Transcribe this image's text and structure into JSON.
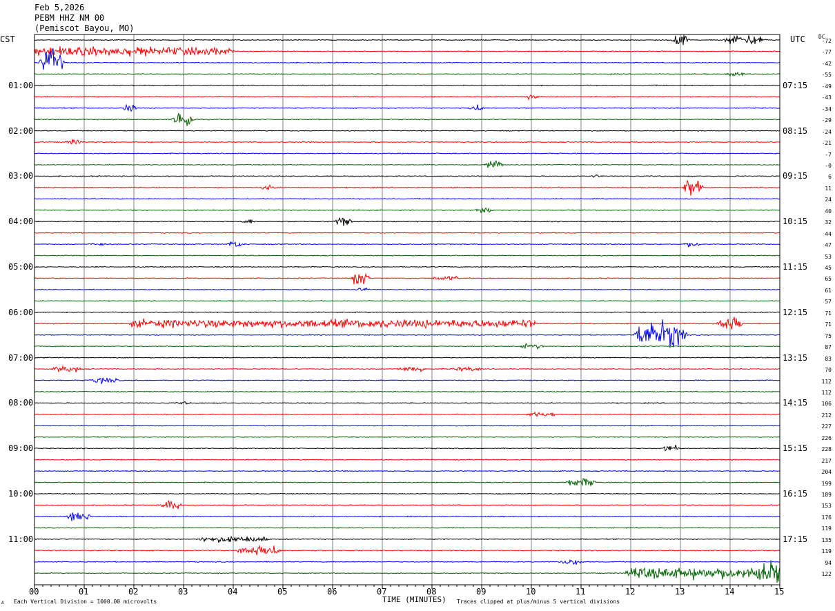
{
  "header": {
    "date": "Feb 5,2026",
    "station": "PEBM HHZ NM 00",
    "location": "(Pemiscot Bayou, MO)"
  },
  "labels": {
    "left_tz": "CST",
    "right_tz": "UTC",
    "dc": "DC",
    "xlabel": "TIME (MINUTES)",
    "scale_note": "Each Vertical Division = 1000.00 microvolts",
    "clip_note": "Traces clipped at plus/minus 5 vertical divisions",
    "corner_mark": "A"
  },
  "chart_data": {
    "type": "line",
    "title": "PEBM HHZ NM 00 (Pemiscot Bayou, MO)",
    "xlabel": "TIME (MINUTES)",
    "xlim": [
      0,
      15
    ],
    "x_ticks": [
      "00",
      "01",
      "02",
      "03",
      "04",
      "05",
      "06",
      "07",
      "08",
      "09",
      "10",
      "11",
      "12",
      "13",
      "14",
      "15"
    ],
    "grid": true,
    "trace_count": 48,
    "trace_colors": [
      "#000000",
      "#ff0000",
      "#0000ff",
      "#006400"
    ],
    "left_hour_labels": [
      "01:00",
      "02:00",
      "03:00",
      "04:00",
      "05:00",
      "06:00",
      "07:00",
      "08:00",
      "09:00",
      "10:00",
      "11:00"
    ],
    "right_hour_labels": [
      "07:15",
      "08:15",
      "09:15",
      "10:15",
      "11:15",
      "12:15",
      "13:15",
      "14:15",
      "15:15",
      "16:15",
      "17:15"
    ],
    "dc_offsets": [
      "-72",
      "-77",
      "-42",
      "-55",
      "-49",
      "-43",
      "-34",
      "-29",
      "-24",
      "-21",
      "-7",
      "-0",
      "6",
      "11",
      "24",
      "40",
      "32",
      "44",
      "47",
      "53",
      "45",
      "65",
      "61",
      "57",
      "71",
      "71",
      "75",
      "87",
      "83",
      "70",
      "112",
      "112",
      "106",
      "212",
      "227",
      "226",
      "228",
      "217",
      "204",
      "199",
      "189",
      "153",
      "176",
      "119",
      "135",
      "119",
      "94",
      "122"
    ],
    "events": [
      {
        "trace": 0,
        "minute": 13.0,
        "amp": 1.0,
        "dur": 0.1
      },
      {
        "trace": 0,
        "minute": 14.3,
        "amp": 0.6,
        "dur": 0.6
      },
      {
        "trace": 1,
        "minute": 1.2,
        "amp": 0.55,
        "dur": 3.5
      },
      {
        "trace": 1,
        "minute": 3.3,
        "amp": 0.45,
        "dur": 1.2
      },
      {
        "trace": 2,
        "minute": 0.35,
        "amp": 1.6,
        "dur": 0.25
      },
      {
        "trace": 3,
        "minute": 14.1,
        "amp": 0.3,
        "dur": 0.2
      },
      {
        "trace": 5,
        "minute": 10.0,
        "amp": 0.3,
        "dur": 0.1
      },
      {
        "trace": 6,
        "minute": 1.9,
        "amp": 0.5,
        "dur": 0.1
      },
      {
        "trace": 6,
        "minute": 8.9,
        "amp": 0.5,
        "dur": 0.1
      },
      {
        "trace": 7,
        "minute": 3.0,
        "amp": 1.1,
        "dur": 0.2
      },
      {
        "trace": 9,
        "minute": 0.8,
        "amp": 0.3,
        "dur": 0.15
      },
      {
        "trace": 11,
        "minute": 9.25,
        "amp": 0.45,
        "dur": 0.2
      },
      {
        "trace": 12,
        "minute": 11.3,
        "amp": 0.2,
        "dur": 0.1
      },
      {
        "trace": 13,
        "minute": 4.7,
        "amp": 0.35,
        "dur": 0.1
      },
      {
        "trace": 13,
        "minute": 13.25,
        "amp": 1.4,
        "dur": 0.15
      },
      {
        "trace": 15,
        "minute": 9.05,
        "amp": 0.4,
        "dur": 0.15
      },
      {
        "trace": 16,
        "minute": 4.3,
        "amp": 0.3,
        "dur": 0.1
      },
      {
        "trace": 16,
        "minute": 6.2,
        "amp": 0.55,
        "dur": 0.15
      },
      {
        "trace": 18,
        "minute": 1.3,
        "amp": 0.2,
        "dur": 0.2
      },
      {
        "trace": 18,
        "minute": 4.05,
        "amp": 0.4,
        "dur": 0.15
      },
      {
        "trace": 18,
        "minute": 13.25,
        "amp": 0.35,
        "dur": 0.15
      },
      {
        "trace": 21,
        "minute": 6.55,
        "amp": 0.9,
        "dur": 0.15
      },
      {
        "trace": 21,
        "minute": 8.3,
        "amp": 0.25,
        "dur": 0.4
      },
      {
        "trace": 22,
        "minute": 6.6,
        "amp": 0.25,
        "dur": 0.1
      },
      {
        "trace": 25,
        "minute": 6.0,
        "amp": 0.5,
        "dur": 8.0
      },
      {
        "trace": 25,
        "minute": 13.9,
        "amp": 1.1,
        "dur": 0.1
      },
      {
        "trace": 25,
        "minute": 14.1,
        "amp": 0.9,
        "dur": 0.1
      },
      {
        "trace": 26,
        "minute": 12.6,
        "amp": 1.6,
        "dur": 0.8
      },
      {
        "trace": 27,
        "minute": 10.0,
        "amp": 0.3,
        "dur": 0.3
      },
      {
        "trace": 29,
        "minute": 0.65,
        "amp": 0.4,
        "dur": 0.35
      },
      {
        "trace": 29,
        "minute": 7.6,
        "amp": 0.3,
        "dur": 0.4
      },
      {
        "trace": 29,
        "minute": 8.7,
        "amp": 0.25,
        "dur": 0.4
      },
      {
        "trace": 30,
        "minute": 1.4,
        "amp": 0.35,
        "dur": 0.4
      },
      {
        "trace": 32,
        "minute": 3.0,
        "amp": 0.2,
        "dur": 0.1
      },
      {
        "trace": 33,
        "minute": 10.2,
        "amp": 0.25,
        "dur": 0.5
      },
      {
        "trace": 36,
        "minute": 12.8,
        "amp": 0.4,
        "dur": 0.2
      },
      {
        "trace": 39,
        "minute": 11.0,
        "amp": 0.55,
        "dur": 0.35
      },
      {
        "trace": 41,
        "minute": 2.75,
        "amp": 0.6,
        "dur": 0.2
      },
      {
        "trace": 42,
        "minute": 0.9,
        "amp": 0.55,
        "dur": 0.25
      },
      {
        "trace": 44,
        "minute": 4.0,
        "amp": 0.35,
        "dur": 1.2
      },
      {
        "trace": 45,
        "minute": 4.5,
        "amp": 0.6,
        "dur": 0.6
      },
      {
        "trace": 45,
        "minute": 4.75,
        "amp": 0.7,
        "dur": 0.2
      },
      {
        "trace": 46,
        "minute": 10.8,
        "amp": 0.35,
        "dur": 0.3
      },
      {
        "trace": 47,
        "minute": 13.5,
        "amp": 0.7,
        "dur": 3.0
      },
      {
        "trace": 47,
        "minute": 14.8,
        "amp": 1.4,
        "dur": 0.4
      }
    ]
  }
}
